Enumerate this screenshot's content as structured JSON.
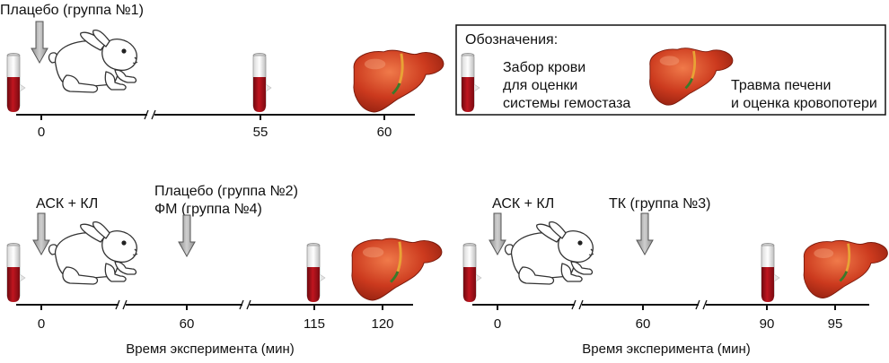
{
  "colors": {
    "blood": "#a6111a",
    "liver": "#c7321c",
    "arrow_fill": "#a7a7a7",
    "arrow_stroke": "#555555",
    "axis": "#111111",
    "rabbit_stroke": "#333333"
  },
  "icons": [
    "rabbit-icon",
    "blood-tube-icon",
    "liver-icon",
    "down-arrow-icon"
  ],
  "panel1": {
    "label": "Плацебо (группа №1)",
    "ticks": [
      "0",
      "55",
      "60"
    ]
  },
  "legend": {
    "title": "Обозначения:",
    "blood_lines": [
      "Забор крови",
      "для оценки",
      "системы гемостаза"
    ],
    "liver_lines": [
      "Травма печени",
      "и оценка кровопотери"
    ]
  },
  "panel2": {
    "label_left": "АСК + КЛ",
    "label_mid_lines": [
      "Плацебо (группа №2)",
      "ФМ (группа №4)"
    ],
    "ticks": [
      "0",
      "60",
      "115",
      "120"
    ],
    "axis_title": "Время эксперимента (мин)"
  },
  "panel3": {
    "label_left": "АСК + КЛ",
    "label_mid": "ТК (группа №3)",
    "ticks": [
      "0",
      "60",
      "90",
      "95"
    ],
    "axis_title": "Время эксперимента (мин)"
  }
}
